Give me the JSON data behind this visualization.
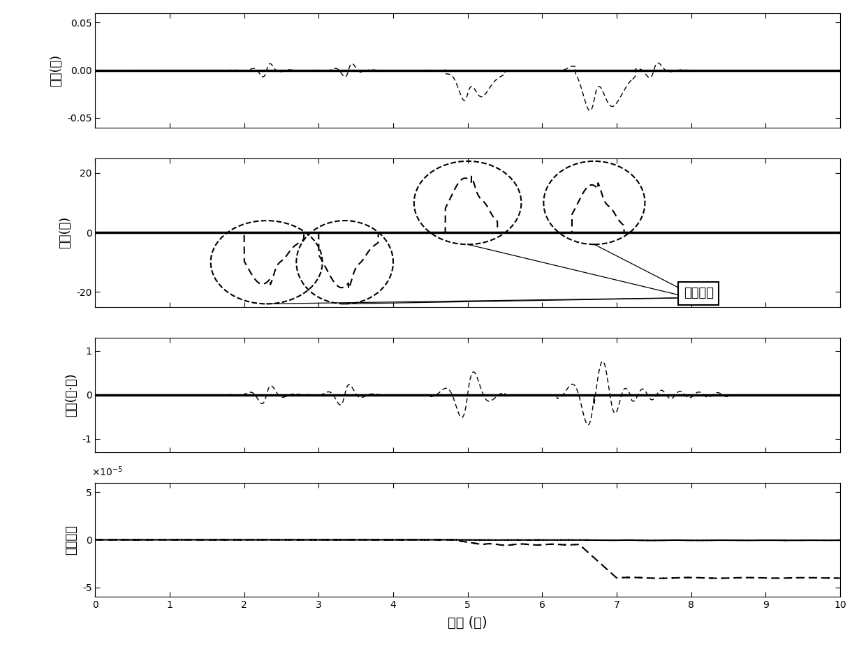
{
  "xlim": [
    0,
    10
  ],
  "xlabel": "时间 (秒)",
  "subplot1_ylabel": "位移(米)",
  "subplot1_ylim": [
    -0.06,
    0.06
  ],
  "subplot1_yticks": [
    -0.05,
    0,
    0.05
  ],
  "subplot2_ylabel": "转角(度)",
  "subplot2_ylim": [
    -25,
    25
  ],
  "subplot2_yticks": [
    -20,
    0,
    20
  ],
  "subplot3_ylabel": "转矩(牛·米)",
  "subplot3_ylim": [
    -1.3,
    1.3
  ],
  "subplot3_yticks": [
    -1,
    0,
    1
  ],
  "subplot4_ylabel": "参数估计",
  "subplot4_ylim": [
    -6e-05,
    6e-05
  ],
  "subplot4_yticks": [
    -5e-05,
    0,
    5e-05
  ],
  "annotation_text": "外界干扰",
  "background_color": "#ffffff",
  "xticks": [
    0,
    1,
    2,
    3,
    4,
    5,
    6,
    7,
    8,
    9,
    10
  ]
}
